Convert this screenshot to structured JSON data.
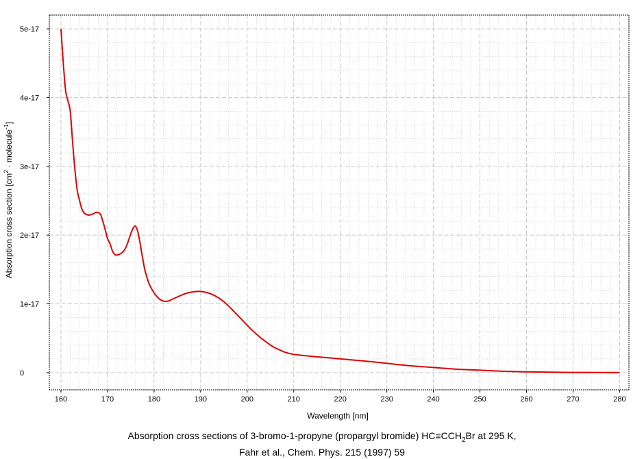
{
  "chart_data": {
    "type": "line",
    "title": "",
    "xlabel": "Wavelength [nm]",
    "ylabel_parts": {
      "prefix": "Absorption cross section [cm",
      "sup1": "2",
      "middle": " · molecule",
      "sup2": "-1",
      "suffix": "]"
    },
    "xlim": [
      157.5,
      282
    ],
    "ylim": [
      -2.5e-18,
      5.2e-17
    ],
    "x_ticks": [
      160,
      170,
      180,
      190,
      200,
      210,
      220,
      230,
      240,
      250,
      260,
      270,
      280
    ],
    "y_ticks": [
      0,
      1e-17,
      2e-17,
      3e-17,
      4e-17,
      5e-17
    ],
    "y_tick_labels": [
      "0",
      "1e-17",
      "2e-17",
      "3e-17",
      "4e-17",
      "5e-17"
    ],
    "grid": true,
    "line_color": "#e00000",
    "series": [
      {
        "x": [
          160,
          160.5,
          161,
          161.5,
          162,
          162.5,
          163,
          163.5,
          164,
          164.5,
          165,
          165.5,
          166,
          166.5,
          167,
          167.5,
          168,
          168.5,
          169,
          169.5,
          170,
          170.5,
          171,
          171.5,
          172,
          172.5,
          173,
          173.5,
          174,
          174.5,
          175,
          175.5,
          176,
          176.5,
          177,
          177.5,
          178,
          178.5,
          179,
          180,
          181,
          182,
          183,
          184,
          185,
          186,
          187,
          188,
          189,
          190,
          191,
          192,
          193,
          194,
          195,
          196,
          197,
          198,
          199,
          200,
          201,
          202,
          203,
          204,
          205,
          206,
          207,
          208,
          209,
          210,
          212,
          215,
          220,
          225,
          230,
          235,
          240,
          245,
          250,
          255,
          260,
          265,
          270,
          275,
          280
        ],
        "y": [
          5e-17,
          4.5e-17,
          4.1e-17,
          3.95e-17,
          3.8e-17,
          3.35e-17,
          2.95e-17,
          2.65e-17,
          2.5e-17,
          2.38e-17,
          2.32e-17,
          2.3e-17,
          2.29e-17,
          2.3e-17,
          2.31e-17,
          2.33e-17,
          2.33e-17,
          2.3e-17,
          2.2e-17,
          2.08e-17,
          1.95e-17,
          1.88e-17,
          1.78e-17,
          1.72e-17,
          1.71e-17,
          1.72e-17,
          1.74e-17,
          1.77e-17,
          1.83e-17,
          1.92e-17,
          2.02e-17,
          2.1e-17,
          2.13e-17,
          2.05e-17,
          1.88e-17,
          1.68e-17,
          1.5e-17,
          1.38e-17,
          1.28e-17,
          1.16e-17,
          1.08e-17,
          1.04e-17,
          1.04e-17,
          1.07e-17,
          1.1e-17,
          1.13e-17,
          1.155e-17,
          1.17e-17,
          1.18e-17,
          1.18e-17,
          1.17e-17,
          1.15e-17,
          1.12e-17,
          1.08e-17,
          1.03e-17,
          9.7e-18,
          9e-18,
          8.3e-18,
          7.6e-18,
          6.9e-18,
          6.2e-18,
          5.6e-18,
          5e-18,
          4.5e-18,
          4e-18,
          3.6e-18,
          3.3e-18,
          3e-18,
          2.8e-18,
          2.65e-18,
          2.5e-18,
          2.3e-18,
          2e-18,
          1.7e-18,
          1.35e-18,
          1e-18,
          7.5e-19,
          5e-19,
          3.5e-19,
          2e-19,
          1.2e-19,
          6e-20,
          3e-20,
          2e-20,
          1e-20
        ]
      }
    ]
  },
  "caption": {
    "line1_prefix": "Absorption cross sections of 3-bromo-1-propyne (propargyl bromide) HC≡CCH",
    "line1_sub": "2",
    "line1_suffix": "Br at 295 K,",
    "line2": "Fahr et al., Chem. Phys. 215 (1997) 59"
  }
}
